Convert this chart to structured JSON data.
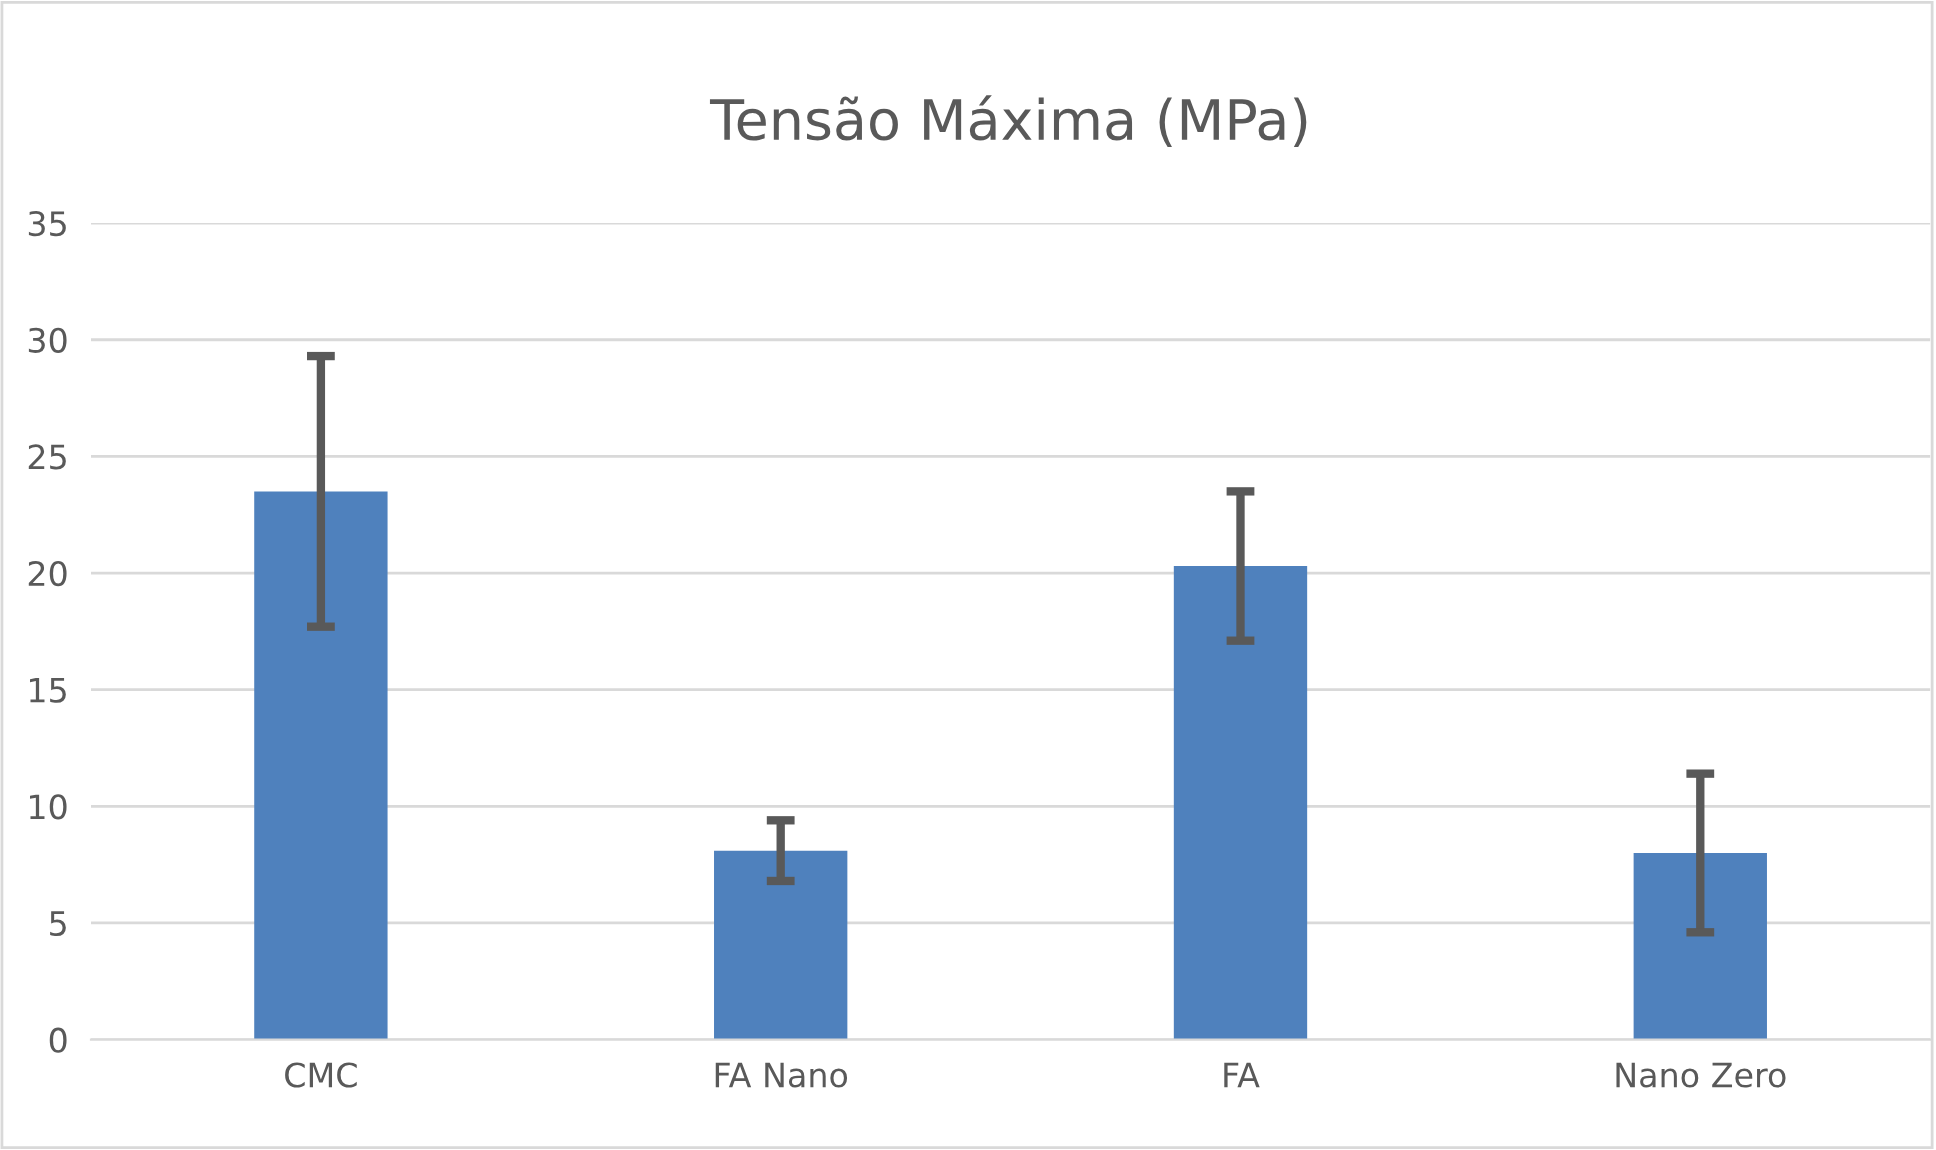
{
  "chart_data": {
    "type": "bar",
    "title": "Tensão Máxima (MPa)",
    "categories": [
      "CMC",
      "FA Nano",
      "FA",
      "Nano Zero"
    ],
    "values": [
      23.5,
      8.1,
      20.3,
      8.0
    ],
    "errors": [
      5.8,
      1.3,
      3.2,
      3.4
    ],
    "color": "#4f81bd",
    "ylim": [
      0,
      35
    ],
    "yticks": [
      0,
      5,
      10,
      15,
      20,
      25,
      30,
      35
    ],
    "grid": "y"
  }
}
